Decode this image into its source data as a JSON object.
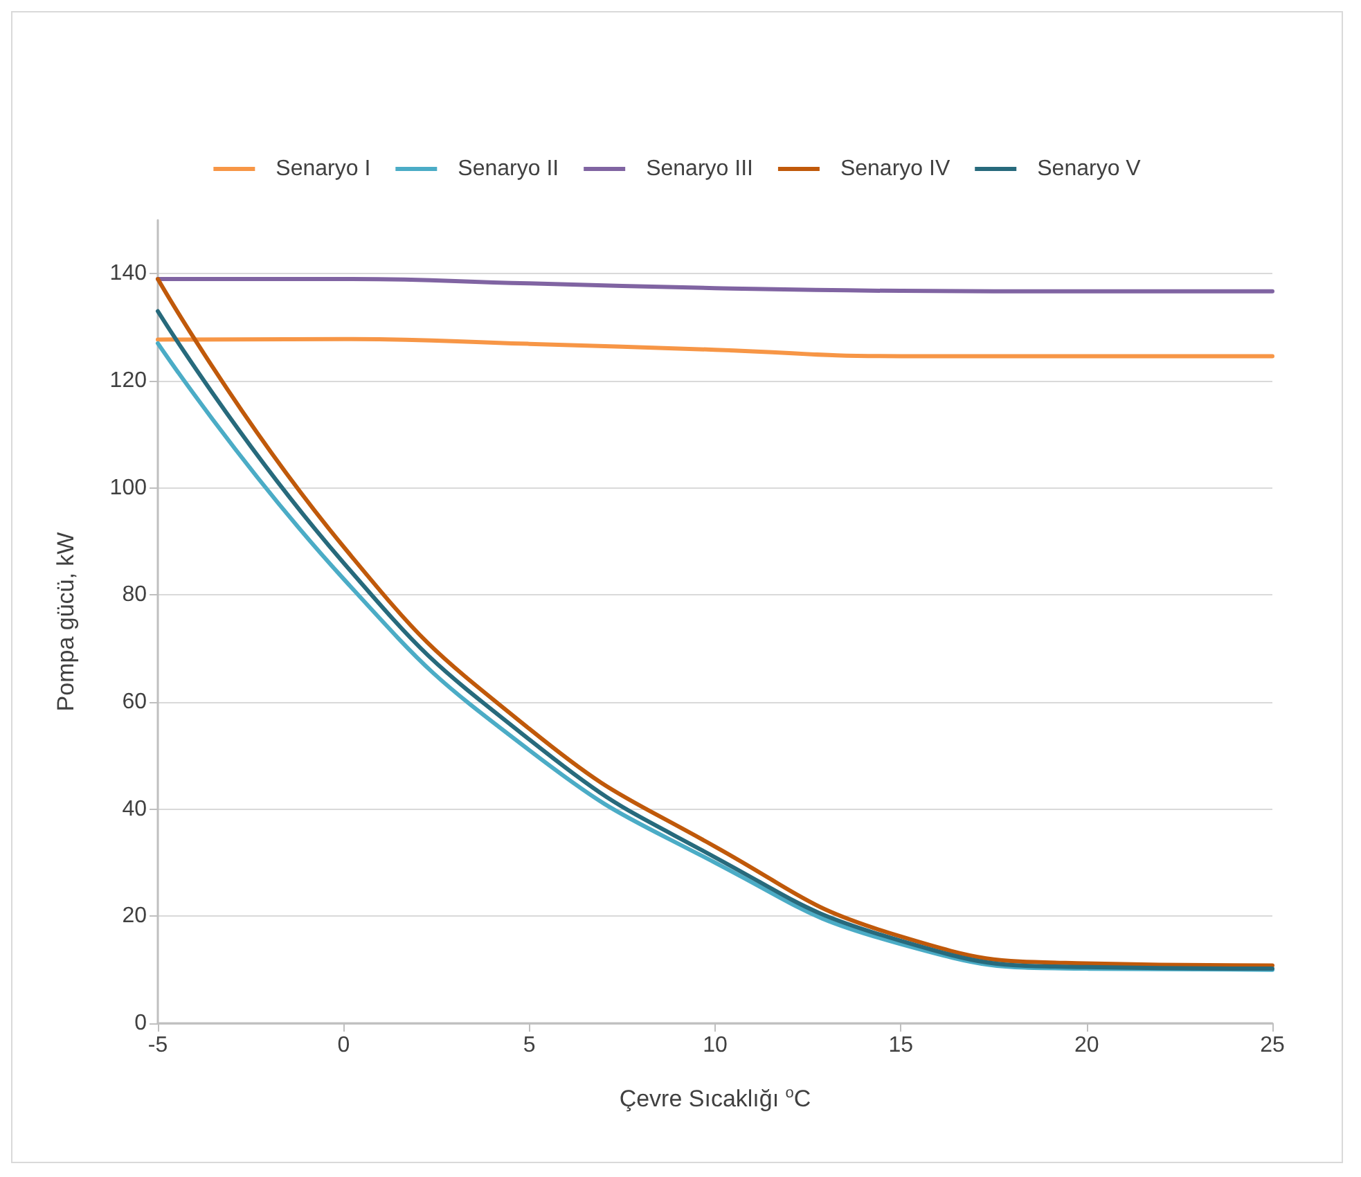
{
  "chart_data": {
    "type": "line",
    "xlabel": "Çevre Sıcaklığı $^{o}$C",
    "ylabel": "Pompa gücü, kW",
    "x": [
      -5,
      0,
      5,
      10,
      15,
      20,
      25
    ],
    "series": [
      {
        "name": "Senaryo I",
        "color": "#f79646",
        "values": [
          127.7,
          127.8,
          126.9,
          125.8,
          124.6,
          124.6,
          124.6
        ]
      },
      {
        "name": "Senaryo II",
        "color": "#4bacc6",
        "values": [
          127,
          83,
          51,
          30,
          14.8,
          10.2,
          10
        ]
      },
      {
        "name": "Senaryo III",
        "color": "#8064a2",
        "values": [
          139,
          139,
          138.2,
          137.3,
          136.8,
          136.7,
          136.7
        ]
      },
      {
        "name": "Senaryo IV",
        "color": "#c0590a",
        "values": [
          139,
          89,
          55,
          33,
          16.2,
          11.2,
          10.8
        ]
      },
      {
        "name": "Senaryo V",
        "color": "#276a7c",
        "values": [
          133,
          86,
          53,
          31,
          15.4,
          10.5,
          10.2
        ]
      }
    ],
    "xlim": [
      -5,
      25
    ],
    "xticks": [
      -5,
      0,
      5,
      10,
      15,
      20,
      25
    ],
    "ylim": [
      0,
      150
    ],
    "yticks": [
      0,
      20,
      40,
      60,
      80,
      100,
      120,
      140
    ],
    "grid": "y",
    "legend": "top",
    "marker": "none",
    "line_style": "solid"
  }
}
